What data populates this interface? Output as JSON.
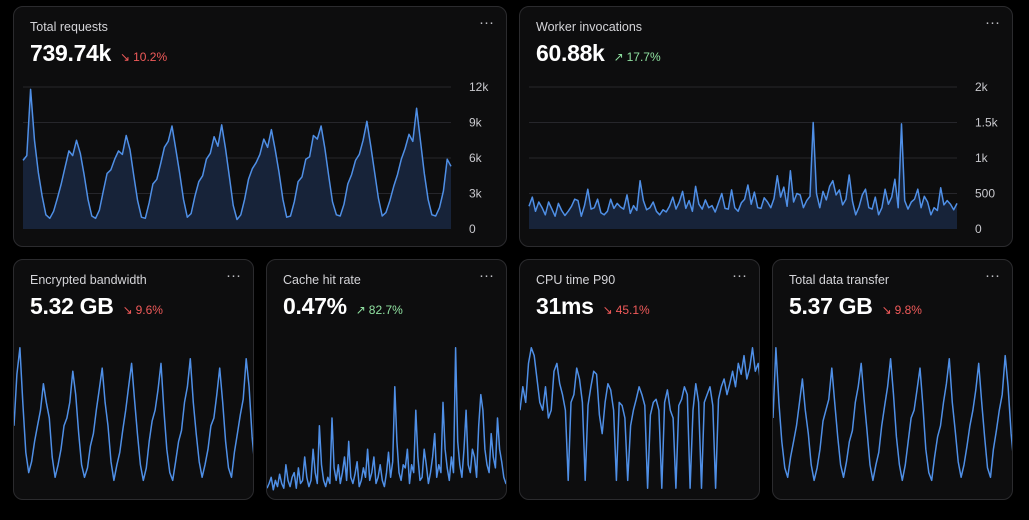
{
  "cards": {
    "requests": {
      "title": "Total requests",
      "value": "739.74k",
      "change": "10.2%",
      "direction": "down",
      "menu": "···",
      "chart_data": {
        "type": "area",
        "ylim": [
          0,
          12000
        ],
        "ticks": [
          "12k",
          "9k",
          "6k",
          "3k",
          "0"
        ],
        "grid": true,
        "values": [
          5800,
          6200,
          11800,
          7500,
          4800,
          2800,
          1200,
          900,
          1500,
          2600,
          3800,
          5200,
          6600,
          6200,
          7500,
          6400,
          4600,
          2500,
          1100,
          900,
          1600,
          3200,
          4700,
          5000,
          5900,
          6600,
          6300,
          7900,
          6700,
          4500,
          2400,
          1000,
          900,
          2200,
          3800,
          4200,
          5500,
          6900,
          7400,
          8700,
          6700,
          4700,
          2500,
          1000,
          1300,
          2800,
          4000,
          4500,
          5900,
          6400,
          7800,
          7000,
          8800,
          6800,
          4400,
          2000,
          800,
          1200,
          2500,
          4200,
          5100,
          5600,
          6300,
          7600,
          6900,
          8400,
          6700,
          4800,
          2500,
          1000,
          1100,
          2300,
          4000,
          4400,
          5900,
          6100,
          7900,
          7600,
          8700,
          6800,
          4500,
          2300,
          1200,
          1100,
          2100,
          3800,
          4600,
          5800,
          6300,
          7500,
          9100,
          7000,
          4800,
          2600,
          1100,
          1400,
          2400,
          3600,
          4600,
          5900,
          6800,
          8000,
          7400,
          10200,
          7500,
          4700,
          2500,
          1200,
          1100,
          1800,
          3200,
          5900,
          5300
        ]
      },
      "colors": {
        "line": "#4f8fe6",
        "fill": "#172339",
        "grid": "#26262b"
      }
    },
    "workers": {
      "title": "Worker invocations",
      "value": "60.88k",
      "change": "17.7%",
      "direction": "up",
      "menu": "···",
      "chart_data": {
        "type": "area",
        "ylim": [
          0,
          2000
        ],
        "ticks": [
          "2k",
          "1.5k",
          "1k",
          "500",
          "0"
        ],
        "grid": true,
        "values": [
          320,
          450,
          250,
          380,
          300,
          200,
          380,
          280,
          180,
          360,
          260,
          190,
          250,
          320,
          420,
          400,
          180,
          330,
          560,
          280,
          300,
          420,
          230,
          200,
          250,
          420,
          290,
          360,
          310,
          280,
          480,
          220,
          330,
          260,
          680,
          400,
          270,
          300,
          380,
          250,
          200,
          270,
          240,
          320,
          450,
          280,
          380,
          530,
          290,
          400,
          250,
          600,
          350,
          280,
          410,
          300,
          330,
          240,
          370,
          500,
          290,
          280,
          550,
          300,
          250,
          370,
          420,
          620,
          350,
          520,
          300,
          290,
          440,
          380,
          300,
          430,
          750,
          450,
          590,
          320,
          820,
          380,
          500,
          480,
          300,
          400,
          460,
          1500,
          500,
          300,
          530,
          410,
          600,
          680,
          480,
          550,
          340,
          420,
          760,
          390,
          200,
          310,
          480,
          560,
          300,
          280,
          450,
          200,
          300,
          560,
          350,
          450,
          700,
          300,
          1480,
          400,
          280,
          380,
          420,
          560,
          300,
          460,
          380,
          200,
          300,
          260,
          580,
          340,
          400,
          350,
          270,
          360
        ]
      },
      "colors": {
        "line": "#4f8fe6",
        "fill": "#172339",
        "grid": "#26262b"
      }
    },
    "bandwidth": {
      "title": "Encrypted bandwidth",
      "value": "5.32 GB",
      "change": "9.6%",
      "direction": "down",
      "menu": "···",
      "chart_data": {
        "type": "line",
        "values": [
          0.45,
          0.78,
          0.95,
          0.6,
          0.28,
          0.15,
          0.22,
          0.35,
          0.45,
          0.55,
          0.72,
          0.6,
          0.5,
          0.25,
          0.12,
          0.2,
          0.3,
          0.45,
          0.5,
          0.6,
          0.8,
          0.65,
          0.4,
          0.2,
          0.12,
          0.18,
          0.32,
          0.4,
          0.55,
          0.68,
          0.82,
          0.6,
          0.45,
          0.22,
          0.1,
          0.2,
          0.28,
          0.42,
          0.55,
          0.7,
          0.85,
          0.62,
          0.4,
          0.2,
          0.1,
          0.18,
          0.35,
          0.48,
          0.55,
          0.68,
          0.85,
          0.55,
          0.3,
          0.15,
          0.1,
          0.22,
          0.35,
          0.42,
          0.6,
          0.7,
          0.88,
          0.6,
          0.4,
          0.22,
          0.12,
          0.2,
          0.3,
          0.45,
          0.5,
          0.65,
          0.82,
          0.6,
          0.35,
          0.18,
          0.12,
          0.28,
          0.4,
          0.52,
          0.62,
          0.88,
          0.7,
          0.38,
          0.18
        ]
      },
      "colors": {
        "line": "#4f8fe6"
      }
    },
    "cache": {
      "title": "Cache hit rate",
      "value": "0.47%",
      "change": "82.7%",
      "direction": "up",
      "menu": "···",
      "chart_data": {
        "type": "line",
        "values": [
          0.05,
          0.08,
          0.12,
          0.04,
          0.1,
          0.06,
          0.14,
          0.08,
          0.05,
          0.2,
          0.1,
          0.06,
          0.12,
          0.15,
          0.05,
          0.18,
          0.08,
          0.1,
          0.25,
          0.12,
          0.06,
          0.1,
          0.3,
          0.15,
          0.08,
          0.45,
          0.2,
          0.1,
          0.06,
          0.12,
          0.08,
          0.5,
          0.18,
          0.1,
          0.2,
          0.08,
          0.15,
          0.25,
          0.1,
          0.35,
          0.12,
          0.08,
          0.14,
          0.22,
          0.06,
          0.1,
          0.18,
          0.12,
          0.3,
          0.1,
          0.15,
          0.25,
          0.08,
          0.12,
          0.2,
          0.1,
          0.06,
          0.15,
          0.28,
          0.12,
          0.22,
          0.7,
          0.35,
          0.15,
          0.1,
          0.2,
          0.18,
          0.3,
          0.08,
          0.2,
          0.15,
          0.55,
          0.25,
          0.1,
          0.12,
          0.3,
          0.2,
          0.08,
          0.15,
          0.25,
          0.4,
          0.12,
          0.2,
          0.15,
          0.6,
          0.3,
          0.18,
          0.1,
          0.25,
          0.15,
          0.95,
          0.35,
          0.2,
          0.12,
          0.3,
          0.55,
          0.2,
          0.15,
          0.3,
          0.25,
          0.12,
          0.45,
          0.65,
          0.55,
          0.3,
          0.2,
          0.15,
          0.4,
          0.25,
          0.18,
          0.5,
          0.3,
          0.22,
          0.12,
          0.08,
          0.1
        ]
      },
      "colors": {
        "line": "#4f8fe6"
      }
    },
    "cpu": {
      "title": "CPU time P90",
      "value": "31ms",
      "change": "45.1%",
      "direction": "down",
      "menu": "···",
      "chart_data": {
        "type": "line",
        "values": [
          0.55,
          0.7,
          0.6,
          0.85,
          0.95,
          0.9,
          0.75,
          0.6,
          0.55,
          0.7,
          0.5,
          0.55,
          0.8,
          0.85,
          0.72,
          0.65,
          0.55,
          0.1,
          0.6,
          0.65,
          0.82,
          0.75,
          0.6,
          0.1,
          0.58,
          0.7,
          0.8,
          0.78,
          0.52,
          0.4,
          0.6,
          0.72,
          0.68,
          0.55,
          0.1,
          0.6,
          0.58,
          0.5,
          0.1,
          0.45,
          0.55,
          0.62,
          0.7,
          0.65,
          0.58,
          0.05,
          0.52,
          0.6,
          0.62,
          0.55,
          0.05,
          0.6,
          0.68,
          0.55,
          0.5,
          0.05,
          0.58,
          0.62,
          0.7,
          0.65,
          0.05,
          0.55,
          0.72,
          0.6,
          0.05,
          0.6,
          0.65,
          0.7,
          0.58,
          0.05,
          0.62,
          0.7,
          0.75,
          0.65,
          0.72,
          0.8,
          0.7,
          0.85,
          0.78,
          0.9,
          0.75,
          0.82,
          0.95,
          0.8,
          0.85,
          0.7
        ]
      },
      "colors": {
        "line": "#4f8fe6"
      }
    },
    "transfer": {
      "title": "Total data transfer",
      "value": "5.37 GB",
      "change": "9.8%",
      "direction": "down",
      "menu": "···",
      "chart_data": {
        "type": "line",
        "values": [
          0.5,
          0.95,
          0.6,
          0.35,
          0.18,
          0.12,
          0.25,
          0.35,
          0.45,
          0.6,
          0.75,
          0.55,
          0.4,
          0.2,
          0.1,
          0.18,
          0.3,
          0.48,
          0.55,
          0.62,
          0.82,
          0.6,
          0.38,
          0.2,
          0.12,
          0.22,
          0.35,
          0.42,
          0.6,
          0.7,
          0.85,
          0.62,
          0.42,
          0.2,
          0.1,
          0.2,
          0.28,
          0.45,
          0.58,
          0.7,
          0.88,
          0.65,
          0.38,
          0.2,
          0.1,
          0.2,
          0.35,
          0.5,
          0.55,
          0.68,
          0.82,
          0.58,
          0.3,
          0.15,
          0.1,
          0.25,
          0.38,
          0.45,
          0.6,
          0.72,
          0.88,
          0.6,
          0.42,
          0.22,
          0.12,
          0.2,
          0.32,
          0.45,
          0.55,
          0.68,
          0.85,
          0.6,
          0.38,
          0.18,
          0.12,
          0.3,
          0.42,
          0.55,
          0.65,
          0.9,
          0.7,
          0.4,
          0.2
        ]
      },
      "colors": {
        "line": "#4f8fe6"
      }
    }
  }
}
